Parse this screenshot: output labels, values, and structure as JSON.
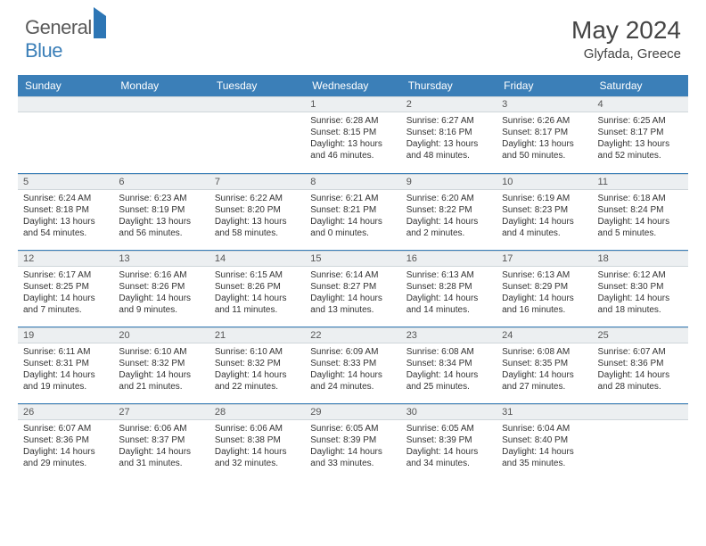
{
  "brand": {
    "part1": "General",
    "part2": "Blue"
  },
  "title": "May 2024",
  "location": "Glyfada, Greece",
  "colors": {
    "header_bg": "#3b7fb8",
    "header_text": "#ffffff",
    "daynum_bg": "#eceff1",
    "border": "#3b7fb8",
    "body_text": "#333333"
  },
  "weekdays": [
    "Sunday",
    "Monday",
    "Tuesday",
    "Wednesday",
    "Thursday",
    "Friday",
    "Saturday"
  ],
  "layout": {
    "first_weekday_index": 3,
    "days_in_month": 31,
    "weeks": 5
  },
  "days": {
    "1": {
      "sunrise": "6:28 AM",
      "sunset": "8:15 PM",
      "daylight": "13 hours and 46 minutes."
    },
    "2": {
      "sunrise": "6:27 AM",
      "sunset": "8:16 PM",
      "daylight": "13 hours and 48 minutes."
    },
    "3": {
      "sunrise": "6:26 AM",
      "sunset": "8:17 PM",
      "daylight": "13 hours and 50 minutes."
    },
    "4": {
      "sunrise": "6:25 AM",
      "sunset": "8:17 PM",
      "daylight": "13 hours and 52 minutes."
    },
    "5": {
      "sunrise": "6:24 AM",
      "sunset": "8:18 PM",
      "daylight": "13 hours and 54 minutes."
    },
    "6": {
      "sunrise": "6:23 AM",
      "sunset": "8:19 PM",
      "daylight": "13 hours and 56 minutes."
    },
    "7": {
      "sunrise": "6:22 AM",
      "sunset": "8:20 PM",
      "daylight": "13 hours and 58 minutes."
    },
    "8": {
      "sunrise": "6:21 AM",
      "sunset": "8:21 PM",
      "daylight": "14 hours and 0 minutes."
    },
    "9": {
      "sunrise": "6:20 AM",
      "sunset": "8:22 PM",
      "daylight": "14 hours and 2 minutes."
    },
    "10": {
      "sunrise": "6:19 AM",
      "sunset": "8:23 PM",
      "daylight": "14 hours and 4 minutes."
    },
    "11": {
      "sunrise": "6:18 AM",
      "sunset": "8:24 PM",
      "daylight": "14 hours and 5 minutes."
    },
    "12": {
      "sunrise": "6:17 AM",
      "sunset": "8:25 PM",
      "daylight": "14 hours and 7 minutes."
    },
    "13": {
      "sunrise": "6:16 AM",
      "sunset": "8:26 PM",
      "daylight": "14 hours and 9 minutes."
    },
    "14": {
      "sunrise": "6:15 AM",
      "sunset": "8:26 PM",
      "daylight": "14 hours and 11 minutes."
    },
    "15": {
      "sunrise": "6:14 AM",
      "sunset": "8:27 PM",
      "daylight": "14 hours and 13 minutes."
    },
    "16": {
      "sunrise": "6:13 AM",
      "sunset": "8:28 PM",
      "daylight": "14 hours and 14 minutes."
    },
    "17": {
      "sunrise": "6:13 AM",
      "sunset": "8:29 PM",
      "daylight": "14 hours and 16 minutes."
    },
    "18": {
      "sunrise": "6:12 AM",
      "sunset": "8:30 PM",
      "daylight": "14 hours and 18 minutes."
    },
    "19": {
      "sunrise": "6:11 AM",
      "sunset": "8:31 PM",
      "daylight": "14 hours and 19 minutes."
    },
    "20": {
      "sunrise": "6:10 AM",
      "sunset": "8:32 PM",
      "daylight": "14 hours and 21 minutes."
    },
    "21": {
      "sunrise": "6:10 AM",
      "sunset": "8:32 PM",
      "daylight": "14 hours and 22 minutes."
    },
    "22": {
      "sunrise": "6:09 AM",
      "sunset": "8:33 PM",
      "daylight": "14 hours and 24 minutes."
    },
    "23": {
      "sunrise": "6:08 AM",
      "sunset": "8:34 PM",
      "daylight": "14 hours and 25 minutes."
    },
    "24": {
      "sunrise": "6:08 AM",
      "sunset": "8:35 PM",
      "daylight": "14 hours and 27 minutes."
    },
    "25": {
      "sunrise": "6:07 AM",
      "sunset": "8:36 PM",
      "daylight": "14 hours and 28 minutes."
    },
    "26": {
      "sunrise": "6:07 AM",
      "sunset": "8:36 PM",
      "daylight": "14 hours and 29 minutes."
    },
    "27": {
      "sunrise": "6:06 AM",
      "sunset": "8:37 PM",
      "daylight": "14 hours and 31 minutes."
    },
    "28": {
      "sunrise": "6:06 AM",
      "sunset": "8:38 PM",
      "daylight": "14 hours and 32 minutes."
    },
    "29": {
      "sunrise": "6:05 AM",
      "sunset": "8:39 PM",
      "daylight": "14 hours and 33 minutes."
    },
    "30": {
      "sunrise": "6:05 AM",
      "sunset": "8:39 PM",
      "daylight": "14 hours and 34 minutes."
    },
    "31": {
      "sunrise": "6:04 AM",
      "sunset": "8:40 PM",
      "daylight": "14 hours and 35 minutes."
    }
  },
  "labels": {
    "sunrise": "Sunrise:",
    "sunset": "Sunset:",
    "daylight": "Daylight:"
  }
}
